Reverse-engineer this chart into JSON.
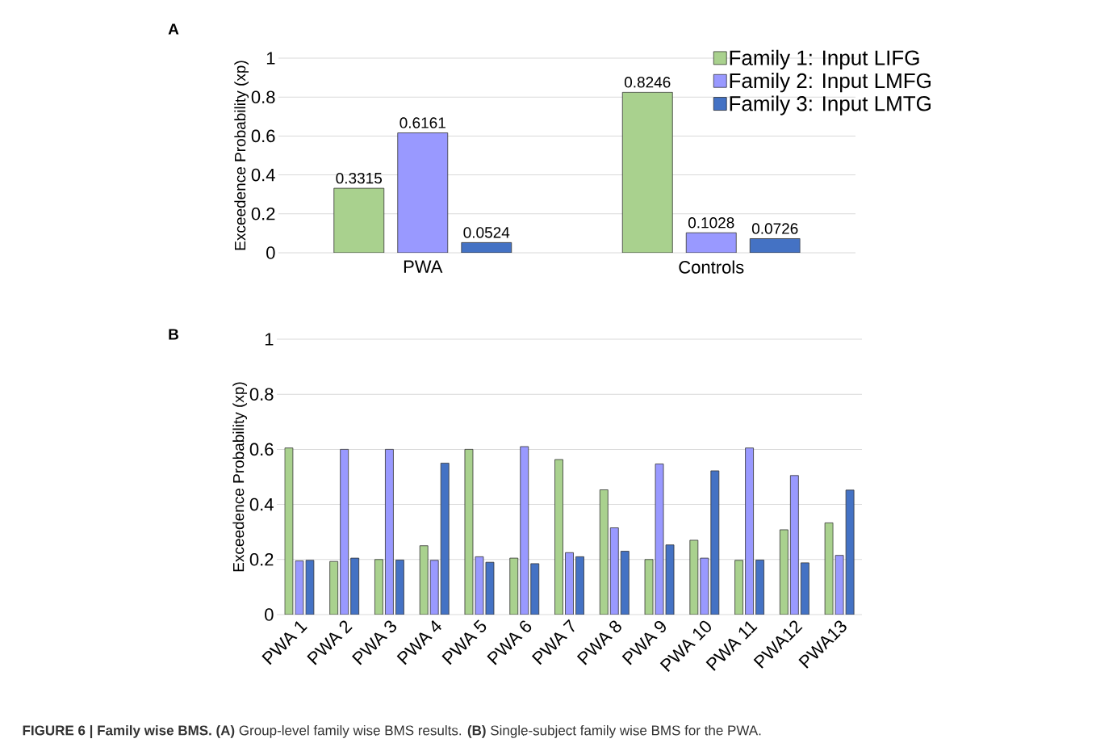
{
  "chart_data": [
    {
      "type": "bar",
      "ylabel": "Exceedence Probability (xp)",
      "categories": [
        "PWA",
        "Controls"
      ],
      "series": [
        {
          "name": "Family 1: Input LIFG",
          "color": "#a9d18e",
          "values": [
            0.3315,
            0.8246
          ]
        },
        {
          "name": "Family 2: Input LMFG",
          "color": "#9999ff",
          "values": [
            0.6161,
            0.1028
          ]
        },
        {
          "name": "Family 3: Input LMTG",
          "color": "#4472c4",
          "values": [
            0.0524,
            0.0726
          ]
        }
      ],
      "ylim": [
        0,
        1
      ],
      "yticks": [
        0,
        0.2,
        0.4,
        0.6,
        0.8,
        1
      ],
      "grid": "y",
      "legend": "top right",
      "data_labels": true,
      "annotations": [
        "A"
      ]
    },
    {
      "type": "bar",
      "ylabel": "Exceedence Probability (xp)",
      "categories": [
        "PWA 1",
        "PWA 2",
        "PWA 3",
        "PWA 4",
        "PWA 5",
        "PWA 6",
        "PWA 7",
        "PWA 8",
        "PWA 9",
        "PWA 10",
        "PWA 11",
        "PWA12",
        "PWA13"
      ],
      "series": [
        {
          "color": "#a9d18e",
          "values": [
            0.605,
            0.193,
            0.2,
            0.25,
            0.6,
            0.205,
            0.563,
            0.453,
            0.2,
            0.27,
            0.197,
            0.308,
            0.333
          ]
        },
        {
          "color": "#9999ff",
          "values": [
            0.195,
            0.6,
            0.6,
            0.197,
            0.21,
            0.61,
            0.225,
            0.315,
            0.547,
            0.205,
            0.605,
            0.505,
            0.215
          ]
        },
        {
          "color": "#4472c4",
          "values": [
            0.197,
            0.205,
            0.198,
            0.55,
            0.19,
            0.185,
            0.21,
            0.23,
            0.253,
            0.522,
            0.198,
            0.188,
            0.452
          ]
        }
      ],
      "ylim": [
        0,
        1
      ],
      "yticks": [
        0,
        0.2,
        0.4,
        0.6,
        0.8,
        1
      ],
      "grid": "y",
      "annotations": [
        "B",
        "**FIGURE 6 | Family wise BMS. (A)** Group-level family wise BMS results. **(B)** Single-subject family wise BMS for the PWA."
      ]
    }
  ]
}
